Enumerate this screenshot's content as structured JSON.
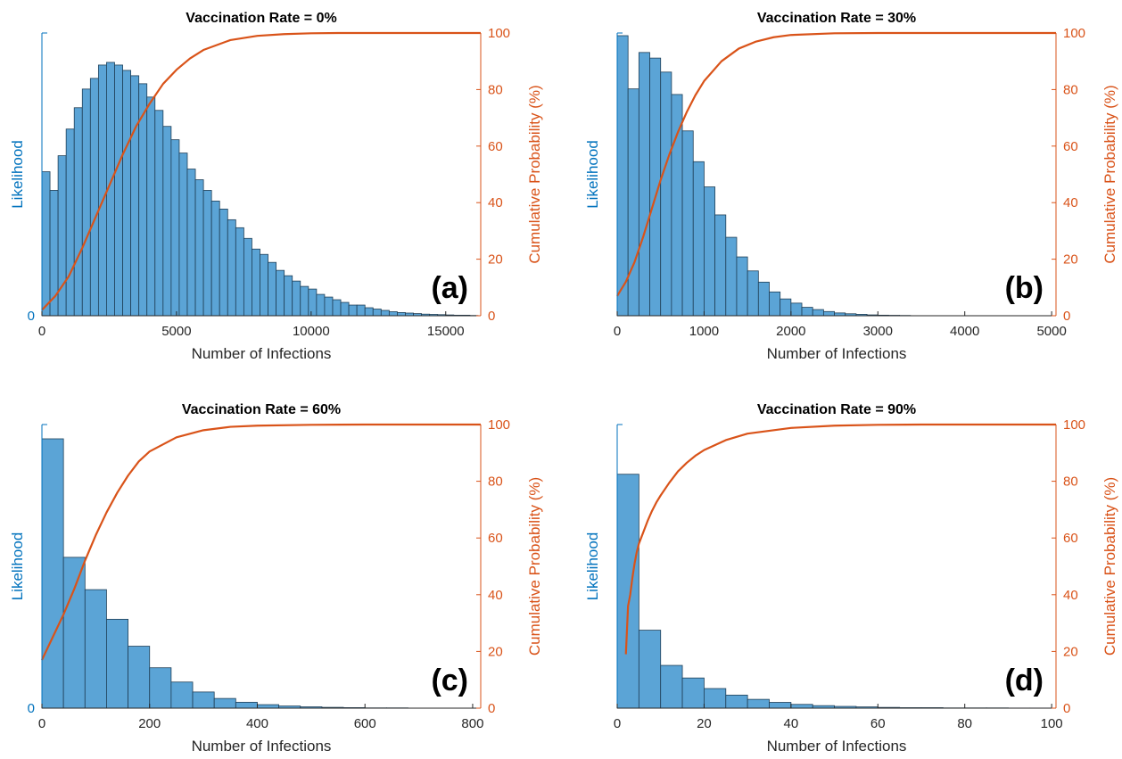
{
  "colors": {
    "bar_fill": "#5BA4D6",
    "bar_edge": "#1f3f57",
    "left_axis": "#0072BD",
    "right_axis": "#D95319",
    "curve": "#D95319",
    "text": "#262626"
  },
  "chart_data": [
    {
      "type": "bar",
      "title": "Vaccination Rate = 0%",
      "xlabel": "Number of Infections",
      "ylabel": "Likelihood",
      "ylabel_right": "Cumulative Probability (%)",
      "panel_label": "(a)",
      "xlim": [
        0,
        16300
      ],
      "xticks": [
        0,
        5000,
        10000,
        15000
      ],
      "xtick_labels": [
        "0",
        "5000",
        "10000",
        "15000"
      ],
      "left_tick_labels": [
        "0"
      ],
      "ylim_right": [
        0,
        100
      ],
      "right_ticks": [
        0,
        20,
        40,
        60,
        80,
        100
      ],
      "bin_width": 300,
      "bin_start": 0,
      "likelihood_relative": [
        0.54,
        0.47,
        0.6,
        0.7,
        0.78,
        0.85,
        0.89,
        0.94,
        0.95,
        0.94,
        0.92,
        0.9,
        0.87,
        0.82,
        0.77,
        0.71,
        0.66,
        0.61,
        0.55,
        0.51,
        0.47,
        0.43,
        0.4,
        0.36,
        0.33,
        0.29,
        0.25,
        0.23,
        0.2,
        0.17,
        0.15,
        0.13,
        0.11,
        0.1,
        0.08,
        0.07,
        0.06,
        0.05,
        0.04,
        0.04,
        0.03,
        0.025,
        0.02,
        0.015,
        0.012,
        0.01,
        0.008,
        0.006,
        0.005,
        0.004,
        0.003,
        0.002,
        0.002,
        0.001
      ],
      "cumulative": {
        "x": [
          0,
          500,
          1000,
          1500,
          2000,
          2500,
          3000,
          3500,
          4000,
          4500,
          5000,
          5500,
          6000,
          7000,
          8000,
          9000,
          10000,
          11000,
          12000,
          16300
        ],
        "y": [
          2,
          7,
          14,
          24,
          35,
          46,
          57,
          67,
          75,
          82,
          87,
          91,
          94,
          97.5,
          99,
          99.6,
          99.9,
          100,
          100,
          100
        ]
      }
    },
    {
      "type": "bar",
      "title": "Vaccination Rate = 30%",
      "xlabel": "Number of Infections",
      "ylabel": "Likelihood",
      "ylabel_right": "Cumulative Probability (%)",
      "panel_label": "(b)",
      "xlim": [
        0,
        5050
      ],
      "xticks": [
        0,
        1000,
        2000,
        3000,
        4000,
        5000
      ],
      "xtick_labels": [
        "0",
        "1000",
        "2000",
        "3000",
        "4000",
        "5000"
      ],
      "left_tick_labels": [],
      "ylim_right": [
        0,
        100
      ],
      "right_ticks": [
        0,
        20,
        40,
        60,
        80,
        100
      ],
      "bin_width": 125,
      "bin_start": 0,
      "likelihood_relative": [
        1.0,
        0.81,
        0.94,
        0.92,
        0.87,
        0.79,
        0.66,
        0.55,
        0.46,
        0.36,
        0.28,
        0.21,
        0.16,
        0.12,
        0.085,
        0.06,
        0.045,
        0.03,
        0.022,
        0.015,
        0.01,
        0.007,
        0.005,
        0.003,
        0.002,
        0.0015,
        0.001
      ],
      "cumulative": {
        "x": [
          0,
          100,
          200,
          300,
          400,
          500,
          600,
          700,
          800,
          900,
          1000,
          1200,
          1400,
          1600,
          1800,
          2000,
          2500,
          3000,
          5050
        ],
        "y": [
          7,
          12,
          19,
          28,
          38,
          48,
          57,
          65,
          72,
          78,
          83,
          90,
          94.5,
          97,
          98.5,
          99.3,
          99.9,
          100,
          100
        ]
      }
    },
    {
      "type": "bar",
      "title": "Vaccination Rate = 60%",
      "xlabel": "Number of Infections",
      "ylabel": "Likelihood",
      "ylabel_right": "Cumulative Probability (%)",
      "panel_label": "(c)",
      "xlim": [
        0,
        815
      ],
      "xticks": [
        0,
        200,
        400,
        600,
        800
      ],
      "xtick_labels": [
        "0",
        "200",
        "400",
        "600",
        "800"
      ],
      "left_tick_labels": [
        "0"
      ],
      "ylim_right": [
        0,
        100
      ],
      "right_ticks": [
        0,
        20,
        40,
        60,
        80,
        100
      ],
      "bin_width": 40,
      "bin_start": 0,
      "likelihood_relative": [
        1.0,
        0.56,
        0.44,
        0.33,
        0.23,
        0.15,
        0.097,
        0.06,
        0.036,
        0.022,
        0.013,
        0.008,
        0.005,
        0.003,
        0.002,
        0.001,
        0.001
      ],
      "cumulative": {
        "x": [
          0,
          20,
          40,
          60,
          80,
          100,
          120,
          140,
          160,
          180,
          200,
          250,
          300,
          350,
          400,
          500,
          600,
          815
        ],
        "y": [
          17,
          25,
          33,
          42,
          52,
          61,
          69,
          76,
          82,
          87,
          90.5,
          95.5,
          98,
          99.2,
          99.6,
          99.9,
          100,
          100
        ]
      }
    },
    {
      "type": "bar",
      "title": "Vaccination Rate = 90%",
      "xlabel": "Number of Infections",
      "ylabel": "Likelihood",
      "ylabel_right": "Cumulative Probability (%)",
      "panel_label": "(d)",
      "xlim": [
        0,
        101
      ],
      "xticks": [
        0,
        20,
        40,
        60,
        80,
        100
      ],
      "xtick_labels": [
        "0",
        "20",
        "40",
        "60",
        "80",
        "100"
      ],
      "left_tick_labels": [],
      "ylim_right": [
        0,
        100
      ],
      "right_ticks": [
        0,
        20,
        40,
        60,
        80,
        100
      ],
      "bin_width": 5,
      "bin_start": 0,
      "likelihood_relative": [
        0.93,
        0.31,
        0.17,
        0.12,
        0.078,
        0.052,
        0.035,
        0.023,
        0.015,
        0.01,
        0.007,
        0.005,
        0.003,
        0.002,
        0.002,
        0.001,
        0.001,
        0.001,
        0.0005,
        0.0005
      ],
      "cumulative": {
        "x": [
          2,
          2.5,
          3,
          3.5,
          4,
          4.5,
          5,
          6,
          7,
          8,
          9,
          10,
          12,
          14,
          16,
          18,
          20,
          25,
          30,
          40,
          50,
          60,
          70,
          101
        ],
        "y": [
          19,
          36,
          40,
          46,
          51,
          55,
          58,
          62,
          66,
          69.5,
          72.5,
          75,
          79.5,
          83.5,
          86.5,
          89,
          91,
          94.5,
          96.8,
          98.8,
          99.6,
          99.9,
          100,
          100
        ]
      }
    }
  ]
}
